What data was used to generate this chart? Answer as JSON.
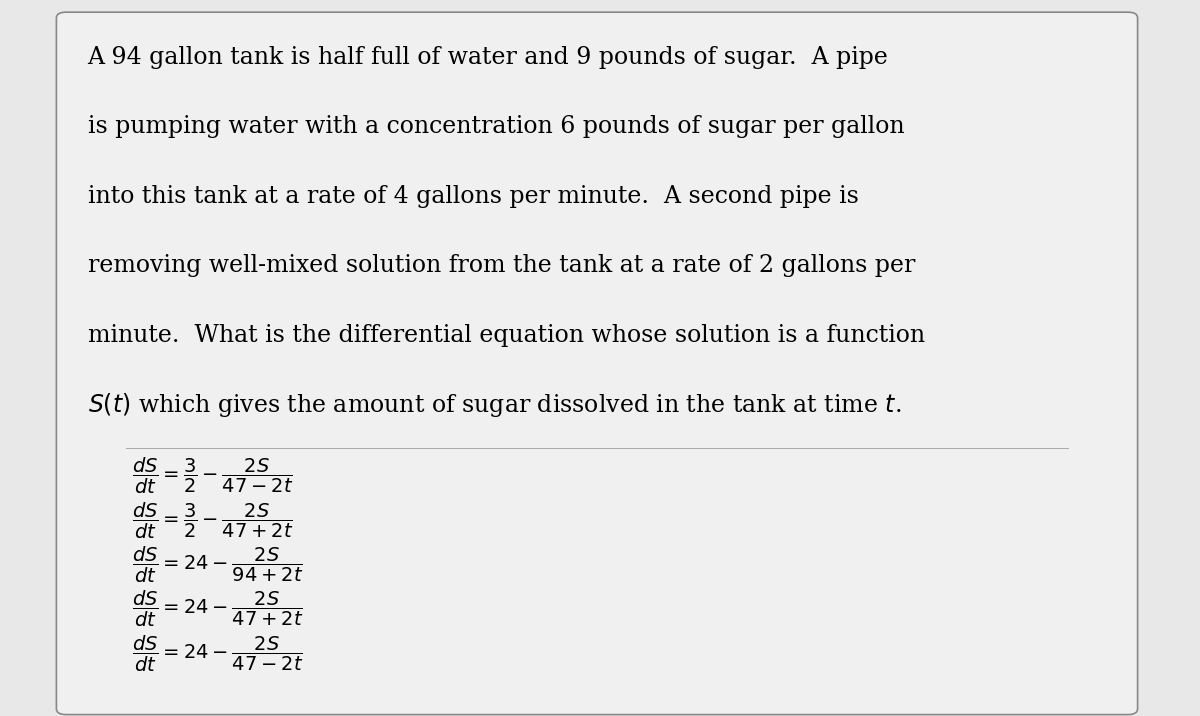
{
  "background_color": "#e8e8e8",
  "box_color": "#f0f0f0",
  "box_edge_color": "#888888",
  "problem_lines": [
    "A 94 gallon tank is half full of water and 9 pounds of sugar.  A pipe",
    "is pumping water with a concentration 6 pounds of sugar per gallon",
    "into this tank at a rate of 4 gallons per minute.  A second pipe is",
    "removing well-mixed solution from the tank at a rate of 2 gallons per",
    "minute.  What is the differential equation whose solution is a function",
    "$S(t)$ which gives the amount of sugar dissolved in the tank at time $t$."
  ],
  "equations": [
    "$\\dfrac{dS}{dt} = \\dfrac{3}{2} - \\dfrac{2S}{47-2t}$",
    "$\\dfrac{dS}{dt} = \\dfrac{3}{2} - \\dfrac{2S}{47+2t}$",
    "$\\dfrac{dS}{dt} = 24 - \\dfrac{2S}{94+2t}$",
    "$\\dfrac{dS}{dt} = 24 - \\dfrac{2S}{47+2t}$",
    "$\\dfrac{dS}{dt} = 24 - \\dfrac{2S}{47-2t}$"
  ],
  "figsize": [
    12.0,
    7.16
  ],
  "dpi": 100,
  "text_fontsize": 17,
  "eq_fontsize": 14
}
